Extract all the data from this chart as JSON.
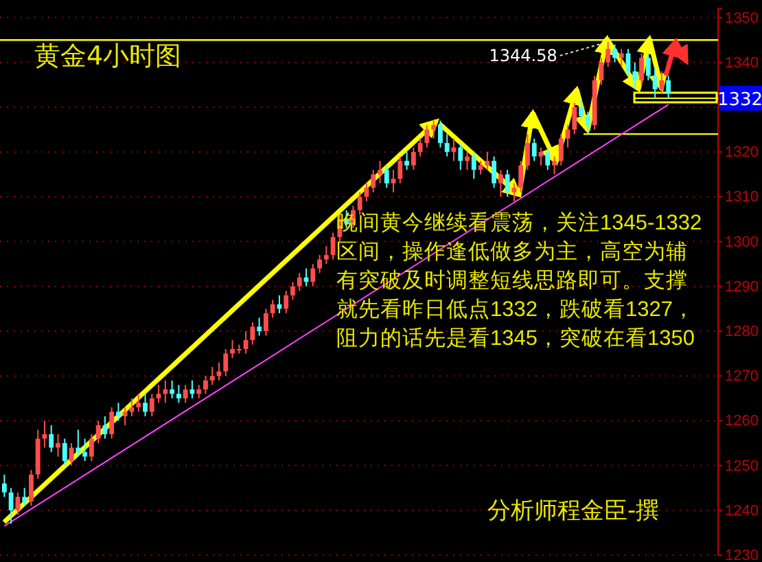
{
  "chart_data": {
    "type": "candlestick",
    "title": "黄金4小时图",
    "categories": [
      null,
      null,
      null,
      null,
      null,
      null,
      null,
      null,
      null,
      null,
      null,
      null,
      null,
      null,
      null,
      null,
      null,
      null,
      null,
      null,
      null,
      null,
      null,
      null,
      null,
      null,
      null,
      null,
      null,
      null,
      null,
      null,
      null,
      null,
      null,
      null,
      null,
      null,
      null,
      null,
      null,
      null,
      null,
      null,
      null,
      null,
      null,
      null,
      null,
      null,
      null,
      null,
      null,
      null,
      null,
      null,
      null,
      null,
      null,
      null,
      null,
      null,
      null,
      null,
      null,
      null,
      null,
      null,
      null,
      null,
      null,
      null,
      null,
      null,
      null,
      null,
      null,
      null,
      null,
      null,
      null,
      null,
      null,
      null,
      null,
      null,
      null,
      null,
      null,
      null,
      null,
      null,
      null,
      null,
      null,
      null,
      null,
      null,
      null,
      null
    ],
    "ohlc": [
      [
        1246,
        1248,
        1243,
        1244
      ],
      [
        1244,
        1245,
        1237,
        1240
      ],
      [
        1240,
        1244,
        1239,
        1243
      ],
      [
        1243,
        1245,
        1241,
        1242
      ],
      [
        1242,
        1249,
        1241,
        1248
      ],
      [
        1248,
        1258,
        1247,
        1256
      ],
      [
        1256,
        1260,
        1254,
        1257
      ],
      [
        1257,
        1259,
        1253,
        1254
      ],
      [
        1254,
        1257,
        1252,
        1255
      ],
      [
        1255,
        1256,
        1250,
        1251
      ],
      [
        1251,
        1255,
        1250,
        1254
      ],
      [
        1254,
        1258,
        1252,
        1253
      ],
      [
        1253,
        1256,
        1251,
        1252
      ],
      [
        1252,
        1257,
        1251,
        1256
      ],
      [
        1256,
        1260,
        1255,
        1259
      ],
      [
        1259,
        1261,
        1256,
        1257
      ],
      [
        1257,
        1263,
        1256,
        1262
      ],
      [
        1262,
        1264,
        1260,
        1261
      ],
      [
        1261,
        1263,
        1259,
        1262
      ],
      [
        1262,
        1265,
        1261,
        1263
      ],
      [
        1263,
        1266,
        1262,
        1264
      ],
      [
        1264,
        1266,
        1261,
        1262
      ],
      [
        1262,
        1266,
        1261,
        1265
      ],
      [
        1265,
        1268,
        1264,
        1266
      ],
      [
        1266,
        1269,
        1264,
        1267
      ],
      [
        1267,
        1269,
        1265,
        1266
      ],
      [
        1266,
        1268,
        1264,
        1265
      ],
      [
        1265,
        1268,
        1264,
        1267
      ],
      [
        1267,
        1269,
        1265,
        1266
      ],
      [
        1266,
        1268,
        1265,
        1267
      ],
      [
        1267,
        1270,
        1266,
        1269
      ],
      [
        1269,
        1272,
        1268,
        1270
      ],
      [
        1270,
        1273,
        1269,
        1271
      ],
      [
        1271,
        1276,
        1270,
        1275
      ],
      [
        1275,
        1278,
        1274,
        1276
      ],
      [
        1276,
        1277,
        1275,
        1276
      ],
      [
        1276,
        1280,
        1275,
        1278
      ],
      [
        1278,
        1282,
        1277,
        1281
      ],
      [
        1281,
        1283,
        1279,
        1280
      ],
      [
        1280,
        1285,
        1279,
        1284
      ],
      [
        1284,
        1287,
        1283,
        1286
      ],
      [
        1286,
        1288,
        1284,
        1285
      ],
      [
        1285,
        1289,
        1284,
        1288
      ],
      [
        1288,
        1291,
        1287,
        1290
      ],
      [
        1290,
        1293,
        1289,
        1292
      ],
      [
        1292,
        1294,
        1290,
        1291
      ],
      [
        1291,
        1295,
        1290,
        1294
      ],
      [
        1294,
        1297,
        1293,
        1296
      ],
      [
        1296,
        1299,
        1295,
        1297
      ],
      [
        1297,
        1302,
        1296,
        1301
      ],
      [
        1301,
        1306,
        1300,
        1305
      ],
      [
        1305,
        1307,
        1303,
        1304
      ],
      [
        1304,
        1308,
        1303,
        1307
      ],
      [
        1307,
        1311,
        1306,
        1310
      ],
      [
        1310,
        1313,
        1309,
        1312
      ],
      [
        1312,
        1316,
        1311,
        1315
      ],
      [
        1315,
        1318,
        1313,
        1316
      ],
      [
        1316,
        1317,
        1312,
        1313
      ],
      [
        1313,
        1316,
        1311,
        1314
      ],
      [
        1314,
        1319,
        1313,
        1318
      ],
      [
        1318,
        1320,
        1316,
        1317
      ],
      [
        1317,
        1321,
        1316,
        1320
      ],
      [
        1320,
        1323,
        1319,
        1322
      ],
      [
        1322,
        1326,
        1321,
        1325
      ],
      [
        1325,
        1327,
        1323,
        1326
      ],
      [
        1326,
        1327,
        1321,
        1322
      ],
      [
        1322,
        1324,
        1319,
        1320
      ],
      [
        1320,
        1323,
        1318,
        1321
      ],
      [
        1321,
        1322,
        1316,
        1318
      ],
      [
        1318,
        1320,
        1316,
        1319
      ],
      [
        1319,
        1320,
        1314,
        1316
      ],
      [
        1316,
        1318,
        1315,
        1317
      ],
      [
        1317,
        1320,
        1316,
        1318
      ],
      [
        1318,
        1319,
        1312,
        1313
      ],
      [
        1313,
        1316,
        1310,
        1315
      ],
      [
        1315,
        1316,
        1310,
        1311
      ],
      [
        1311,
        1313,
        1309,
        1312
      ],
      [
        1312,
        1318,
        1311,
        1317
      ],
      [
        1317,
        1324,
        1316,
        1322
      ],
      [
        1322,
        1323,
        1318,
        1319
      ],
      [
        1319,
        1321,
        1317,
        1320
      ],
      [
        1320,
        1321,
        1316,
        1317
      ],
      [
        1317,
        1319,
        1315,
        1318
      ],
      [
        1318,
        1324,
        1317,
        1323
      ],
      [
        1323,
        1326,
        1321,
        1325
      ],
      [
        1325,
        1331,
        1324,
        1330
      ],
      [
        1330,
        1332,
        1327,
        1328
      ],
      [
        1328,
        1329,
        1324,
        1326
      ],
      [
        1326,
        1337,
        1325,
        1336
      ],
      [
        1336,
        1341,
        1335,
        1340
      ],
      [
        1340,
        1344.58,
        1339,
        1343
      ],
      [
        1343,
        1344,
        1340,
        1341
      ],
      [
        1341,
        1343,
        1339,
        1342
      ],
      [
        1342,
        1343,
        1337,
        1338
      ],
      [
        1338,
        1340,
        1334,
        1336
      ],
      [
        1336,
        1342,
        1335,
        1341
      ],
      [
        1341,
        1342,
        1336,
        1337
      ],
      [
        1337,
        1339,
        1332,
        1334
      ],
      [
        1334,
        1338,
        1333,
        1336
      ],
      [
        1336,
        1337,
        1332,
        1333
      ]
    ],
    "colors": [
      "#4dffff",
      "#4dffff",
      "#ff4d4d",
      "#4dffff",
      "#ff4d4d",
      "#ff4d4d",
      "#ff4d4d",
      "#4dffff",
      "#ff4d4d",
      "#4dffff",
      "#ff4d4d",
      "#4dffff",
      "#4dffff",
      "#ff4d4d",
      "#ff4d4d",
      "#4dffff",
      "#ff4d4d",
      "#4dffff",
      "#ff4d4d",
      "#ff4d4d",
      "#ff4d4d",
      "#4dffff",
      "#ff4d4d",
      "#ff4d4d",
      "#ff4d4d",
      "#4dffff",
      "#4dffff",
      "#ff4d4d",
      "#4dffff",
      "#ff4d4d",
      "#ff4d4d",
      "#ff4d4d",
      "#ff4d4d",
      "#ff4d4d",
      "#ff4d4d",
      "#ff4d4d",
      "#ff4d4d",
      "#ff4d4d",
      "#4dffff",
      "#ff4d4d",
      "#ff4d4d",
      "#4dffff",
      "#ff4d4d",
      "#ff4d4d",
      "#ff4d4d",
      "#4dffff",
      "#ff4d4d",
      "#ff4d4d",
      "#ff4d4d",
      "#ff4d4d",
      "#ff4d4d",
      "#4dffff",
      "#ff4d4d",
      "#ff4d4d",
      "#ff4d4d",
      "#ff4d4d",
      "#ff4d4d",
      "#4dffff",
      "#ff4d4d",
      "#ff4d4d",
      "#4dffff",
      "#ff4d4d",
      "#ff4d4d",
      "#ff4d4d",
      "#ff4d4d",
      "#4dffff",
      "#4dffff",
      "#ff4d4d",
      "#4dffff",
      "#ff4d4d",
      "#4dffff",
      "#ff4d4d",
      "#ff4d4d",
      "#4dffff",
      "#ff4d4d",
      "#4dffff",
      "#ff4d4d",
      "#ff4d4d",
      "#ff4d4d",
      "#4dffff",
      "#ff4d4d",
      "#4dffff",
      "#ff4d4d",
      "#ff4d4d",
      "#ff4d4d",
      "#ff4d4d",
      "#4dffff",
      "#4dffff",
      "#ff4d4d",
      "#ff4d4d",
      "#ff4d4d",
      "#4dffff",
      "#ff4d4d",
      "#4dffff",
      "#4dffff",
      "#ff4d4d",
      "#4dffff",
      "#4dffff",
      "#ff4d4d",
      "#4dffff"
    ],
    "series": [
      {
        "type": "line",
        "color": "#ff40ff",
        "values": [
          1236.5,
          null,
          null,
          null,
          null,
          null,
          null,
          null,
          null,
          null,
          null,
          null,
          null,
          null,
          null,
          null,
          null,
          null,
          null,
          null,
          null,
          null,
          null,
          null,
          null,
          null,
          null,
          null,
          null,
          null,
          null,
          null,
          null,
          null,
          null,
          null,
          null,
          null,
          null,
          null,
          null,
          null,
          null,
          null,
          null,
          null,
          null,
          null,
          null,
          null,
          null,
          null,
          null,
          null,
          null,
          null,
          null,
          null,
          null,
          null,
          null,
          null,
          null,
          null,
          null,
          null,
          null,
          null,
          null,
          null,
          null,
          null,
          null,
          null,
          null,
          null,
          null,
          null,
          null,
          null,
          null,
          null,
          null,
          null,
          null,
          null,
          null,
          null,
          null,
          null,
          null,
          null,
          null,
          null,
          null,
          null,
          null,
          null,
          null,
          1330.6
        ]
      }
    ],
    "ylim": [
      1230,
      1352
    ],
    "yticks": [
      1230,
      1240,
      1250,
      1260,
      1270,
      1280,
      1290,
      1300,
      1310,
      1320,
      {
        "value": 1330,
        "label": null
      },
      1340,
      1350
    ],
    "grid": "y",
    "ref_lines": [
      {
        "axis": "y",
        "value": 1345,
        "color": "#ffff00"
      },
      {
        "axis": "y",
        "value": 1324,
        "color": "#ffff00"
      },
      {
        "axis": "y",
        "value": 1332,
        "label": "1332",
        "color": "#ffff00"
      }
    ],
    "annotations": [
      {
        "text": "1344.58",
        "y": 1344.58
      },
      "晚间黄今继续看震荡，关注1345-1332",
      "区间，操作逢低做多为主，高空为辅",
      "有突破及时调整短线思路即可。支撑",
      "就先看昨日低点1332，跌破看1327，",
      "阻力的话先是看1345，突破在看1350",
      "分析师程金臣-撰"
    ]
  }
}
